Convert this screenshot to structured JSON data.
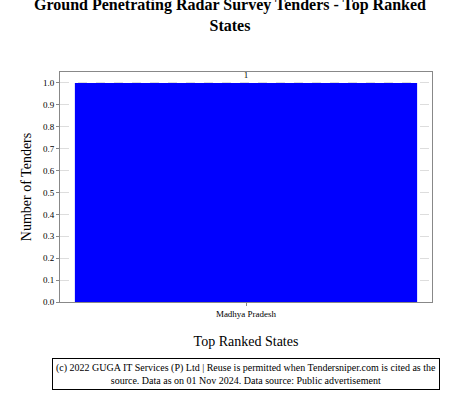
{
  "chart_data": {
    "type": "bar",
    "title": "Ground Penetrating Radar Survey Tenders - Top Ranked States",
    "x_label": "Top Ranked States",
    "y_label": "Number of Tenders",
    "categories": [
      "Madhya Pradesh"
    ],
    "values": [
      1
    ],
    "color": "#0000ff",
    "data_labels": true,
    "ylim": [
      0,
      1.05
    ],
    "yticks": [
      {
        "value": 0,
        "label": "0.0"
      },
      {
        "value": 0.1,
        "label": "0.1"
      },
      {
        "value": 0.2,
        "label": "0.2"
      },
      {
        "value": 0.3,
        "label": "0.3"
      },
      {
        "value": 0.4,
        "label": "0.4"
      },
      {
        "value": 0.5,
        "label": "0.5"
      },
      {
        "value": 0.6,
        "label": "0.6"
      },
      {
        "value": 0.7,
        "label": "0.7"
      },
      {
        "value": 0.8,
        "label": "0.8"
      },
      {
        "value": 0.9,
        "label": "0.9"
      },
      {
        "value": 1,
        "label": "1.0"
      }
    ],
    "grid": true,
    "annotations": [
      "(c) 2022 GUGA IT Services (P) Ltd | Reuse is permitted when Tendersniper.com is cited as the source. Data as on 01 Nov 2024. Data source: Public advertisement"
    ]
  }
}
